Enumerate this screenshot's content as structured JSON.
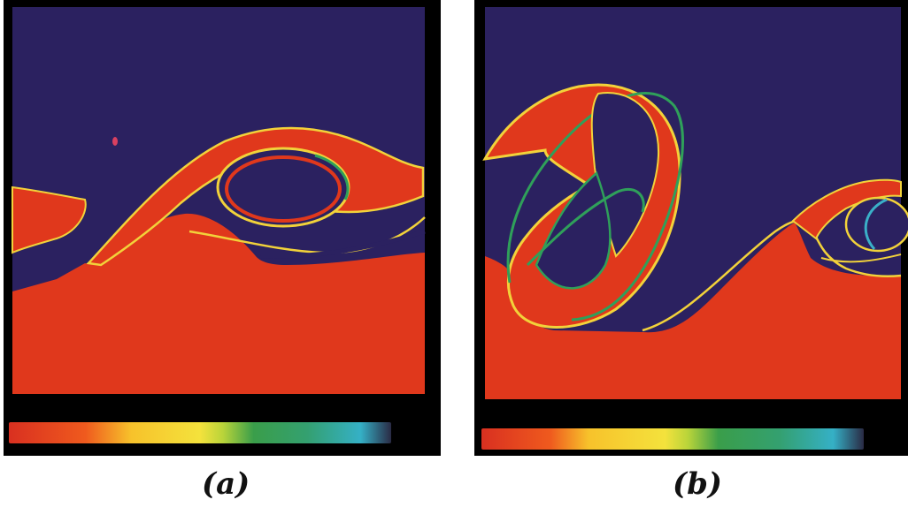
{
  "figure": {
    "panels": [
      {
        "id": "a",
        "caption": "(a)"
      },
      {
        "id": "b",
        "caption": "(b)"
      }
    ]
  },
  "colors": {
    "background_fluid": "#2b2160",
    "dense_fluid": "#e0381c",
    "frame": "#000000",
    "interface_green": "#2fa05a",
    "interface_yellow": "#f2d23a",
    "interface_cyan": "#3ab0c8"
  },
  "colormap": [
    "#d93020",
    "#ef5a1e",
    "#f7c22b",
    "#f4e23c",
    "#b9d43a",
    "#3a9e4a",
    "#34a070",
    "#35b0c6",
    "#223"
  ]
}
